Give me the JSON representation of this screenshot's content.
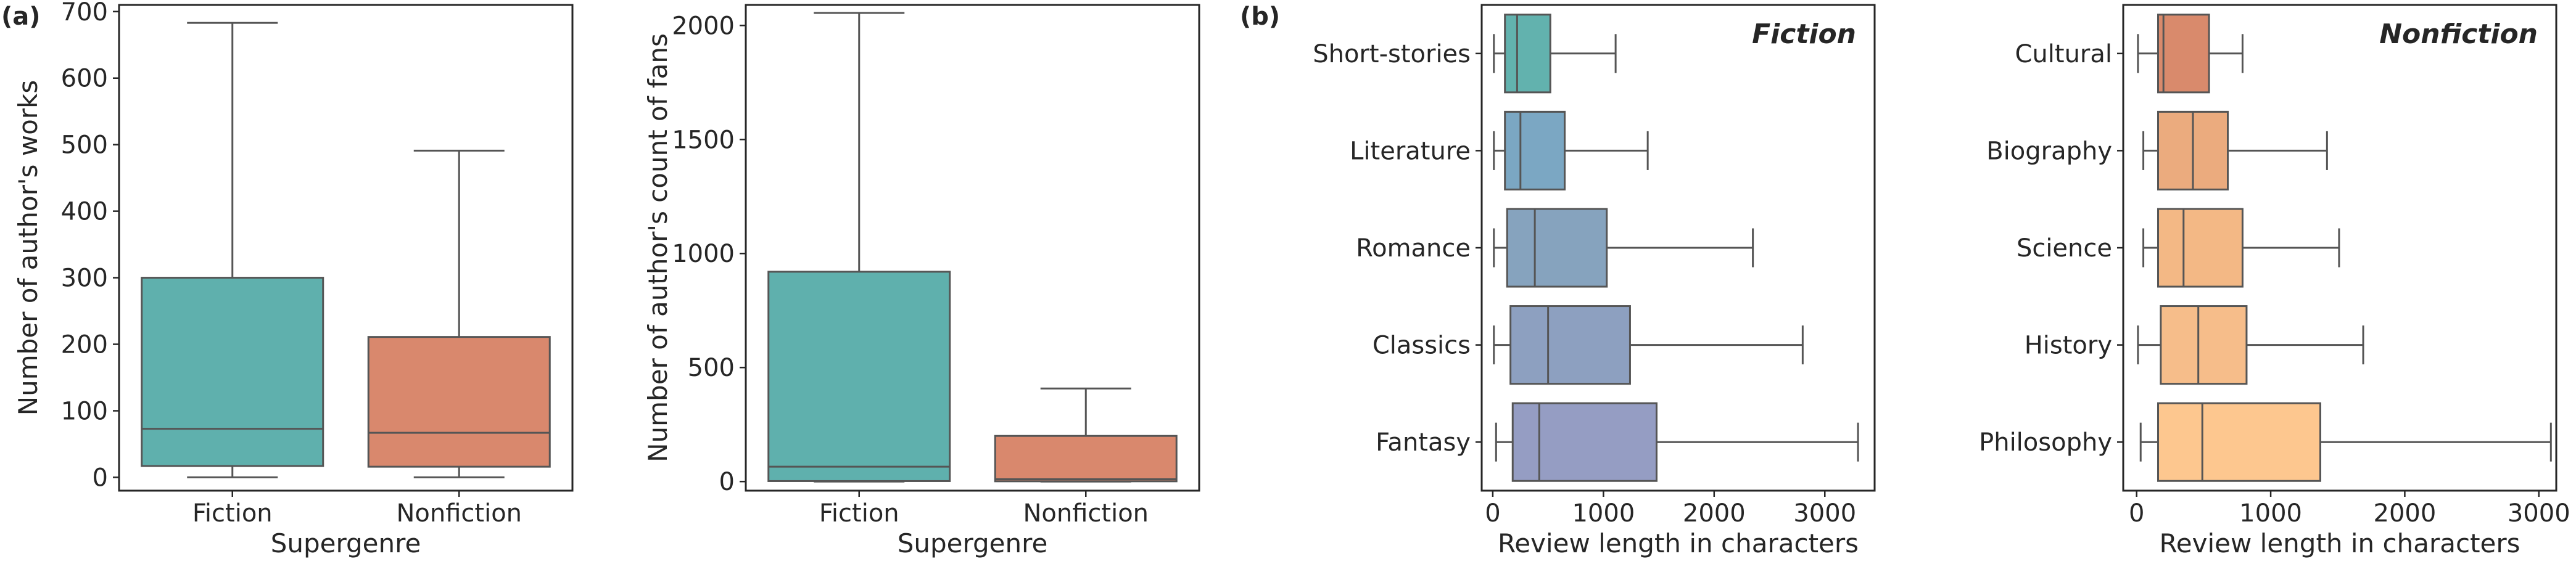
{
  "panel_labels": {
    "a": "(a)",
    "b": "(b)"
  },
  "colors": {
    "fiction": "#5fb0ad",
    "nonfiction": "#d9886d",
    "whisker": "#555555",
    "axis": "#262626",
    "fiction_genres": [
      "#62b2ae",
      "#7ba7c3",
      "#86a3be",
      "#8da0c0",
      "#959dc3"
    ],
    "nonfiction_genres": [
      "#d98a6c",
      "#ebab7e",
      "#f3b885",
      "#f6bd8a",
      "#fdc78f"
    ]
  },
  "chart_data": [
    {
      "id": "works",
      "type": "box",
      "panel": "a",
      "xlabel": "Supergenre",
      "ylabel": "Number of author's works",
      "categories": [
        "Fiction",
        "Nonfiction"
      ],
      "ylim": [
        -20,
        710
      ],
      "yticks": [
        0,
        100,
        200,
        300,
        400,
        500,
        600,
        700
      ],
      "boxes": [
        {
          "name": "Fiction",
          "whislo": 0,
          "q1": 17,
          "median": 73,
          "q3": 300,
          "whishi": 683
        },
        {
          "name": "Nonfiction",
          "whislo": 0,
          "q1": 16,
          "median": 67,
          "q3": 211,
          "whishi": 491
        }
      ]
    },
    {
      "id": "fans",
      "type": "box",
      "panel": "a",
      "xlabel": "Supergenre",
      "ylabel": "Number of author's count of fans",
      "categories": [
        "Fiction",
        "Nonfiction"
      ],
      "ylim": [
        -40,
        2090
      ],
      "yticks": [
        0,
        500,
        1000,
        1500,
        2000
      ],
      "boxes": [
        {
          "name": "Fiction",
          "whislo": 0,
          "q1": 2,
          "median": 65,
          "q3": 920,
          "whishi": 2055
        },
        {
          "name": "Nonfiction",
          "whislo": 0,
          "q1": 1,
          "median": 10,
          "q3": 200,
          "whishi": 408
        }
      ]
    },
    {
      "id": "fiction-reviews",
      "type": "box",
      "orientation": "horizontal",
      "panel": "b",
      "title": "Fiction",
      "xlabel": "Review length in characters",
      "categories": [
        "Short-stories",
        "Literature",
        "Romance",
        "Classics",
        "Fantasy"
      ],
      "xlim": [
        -100,
        3450
      ],
      "xticks": [
        0,
        1000,
        2000,
        3000
      ],
      "boxes": [
        {
          "name": "Short-stories",
          "whislo": 10,
          "q1": 110,
          "median": 220,
          "q3": 520,
          "whishi": 1110
        },
        {
          "name": "Literature",
          "whislo": 10,
          "q1": 110,
          "median": 250,
          "q3": 650,
          "whishi": 1400
        },
        {
          "name": "Romance",
          "whislo": 10,
          "q1": 130,
          "median": 380,
          "q3": 1030,
          "whishi": 2350
        },
        {
          "name": "Classics",
          "whislo": 10,
          "q1": 160,
          "median": 500,
          "q3": 1240,
          "whishi": 2800
        },
        {
          "name": "Fantasy",
          "whislo": 30,
          "q1": 180,
          "median": 420,
          "q3": 1480,
          "whishi": 3300
        }
      ]
    },
    {
      "id": "nonfiction-reviews",
      "type": "box",
      "orientation": "horizontal",
      "panel": "b",
      "title": "Nonfiction",
      "xlabel": "Review length in characters",
      "categories": [
        "Cultural",
        "Biography",
        "Science",
        "History",
        "Philosophy"
      ],
      "xlim": [
        -100,
        3130
      ],
      "xticks": [
        0,
        1000,
        2000,
        3000
      ],
      "boxes": [
        {
          "name": "Cultural",
          "whislo": 10,
          "q1": 160,
          "median": 200,
          "q3": 540,
          "whishi": 790
        },
        {
          "name": "Biography",
          "whislo": 50,
          "q1": 160,
          "median": 420,
          "q3": 680,
          "whishi": 1420
        },
        {
          "name": "Science",
          "whislo": 50,
          "q1": 160,
          "median": 350,
          "q3": 790,
          "whishi": 1510
        },
        {
          "name": "History",
          "whislo": 10,
          "q1": 180,
          "median": 460,
          "q3": 820,
          "whishi": 1690
        },
        {
          "name": "Philosophy",
          "whislo": 30,
          "q1": 160,
          "median": 490,
          "q3": 1370,
          "whishi": 3090
        }
      ]
    }
  ]
}
